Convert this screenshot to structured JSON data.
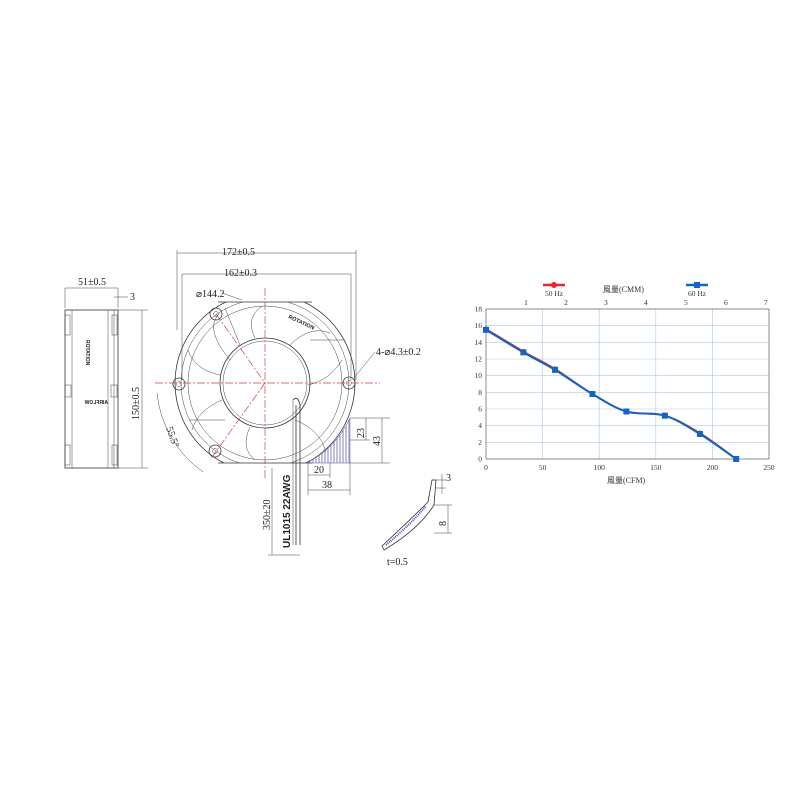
{
  "drawing": {
    "side_view": {
      "width_dim": "51±0.5",
      "thickness_dim": "3",
      "height_dim": "150±0.5",
      "rotation_label": "ROTATION",
      "airflow_label": "AIRFLOW"
    },
    "front_view": {
      "outer_width_dim": "172±0.5",
      "hole_pitch_dim": "162±0.3",
      "diameter_dim": "⌀144.2",
      "rotation_label": "ROTATION",
      "holes_dim": "4-⌀4.3±0.2",
      "angle_dim": "55.5°",
      "dim_23": "23",
      "dim_43": "43",
      "dim_20": "20",
      "dim_38": "38",
      "lead_length_dim": "350±20",
      "wire_spec": "UL1015  22AWG"
    },
    "clip_detail": {
      "dim_3": "3",
      "dim_8": "8",
      "thickness": "t=0.5"
    }
  },
  "chart_data": {
    "type": "line",
    "title": "",
    "xlabel": "風量(CFM)",
    "x2label": "風量(CMM)",
    "ylabel": "",
    "xlim": [
      0,
      250
    ],
    "ylim": [
      0,
      18
    ],
    "x2lim": [
      0,
      7.08
    ],
    "x_ticks": [
      "0",
      "50",
      "100",
      "150",
      "200",
      "250"
    ],
    "x2_ticks": [
      "1",
      "2",
      "3",
      "4",
      "5",
      "6",
      "7"
    ],
    "y_ticks": [
      "0",
      "2",
      "4",
      "6",
      "8",
      "10",
      "12",
      "14",
      "16",
      "18"
    ],
    "grid": true,
    "legend_placement": "top",
    "series": [
      {
        "name": "50 Hz",
        "color": "#e8282a",
        "marker": "circle",
        "x": [
          0,
          33,
          61,
          94,
          124,
          158,
          189,
          221
        ],
        "y": [
          15.6,
          12.9,
          10.8,
          7.8,
          5.7,
          5.2,
          3.1,
          0
        ]
      },
      {
        "name": "60 Hz",
        "color": "#1565c0",
        "marker": "square",
        "x": [
          0,
          33,
          61,
          94,
          124,
          158,
          189,
          221
        ],
        "y": [
          15.5,
          12.8,
          10.7,
          7.8,
          5.7,
          5.2,
          3.0,
          0
        ]
      }
    ]
  }
}
